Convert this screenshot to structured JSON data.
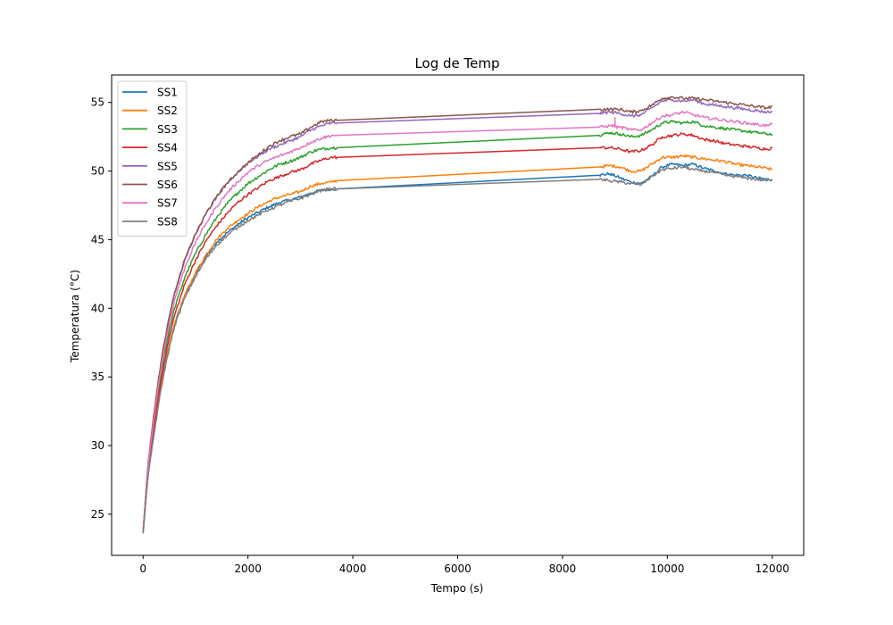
{
  "chart_data": {
    "type": "line",
    "title": "Log de Temp",
    "xlabel": "Tempo (s)",
    "ylabel": "Temperatura (°C)",
    "xlim": [
      -600,
      12600
    ],
    "ylim": [
      22,
      57
    ],
    "xticks": [
      0,
      2000,
      4000,
      6000,
      8000,
      10000,
      12000
    ],
    "yticks": [
      25,
      30,
      35,
      40,
      45,
      50,
      55
    ],
    "grid": false,
    "legend_position": "top-left",
    "series": [
      {
        "name": "SS1",
        "color": "#1f77b4",
        "x": [
          0,
          50,
          100,
          200,
          300,
          400,
          500,
          600,
          800,
          1000,
          1200,
          1400,
          1600,
          1800,
          2000,
          2200,
          2400,
          2600,
          2800,
          3000,
          3200,
          3400,
          3600,
          3700,
          8700,
          8900,
          9100,
          9300,
          9500,
          9700,
          9900,
          10100,
          10300,
          10500,
          10700,
          10900,
          11100,
          11300,
          11500,
          11700,
          11900,
          12000
        ],
        "y": [
          23.7,
          26.0,
          28.0,
          30.8,
          33.3,
          35.5,
          37.3,
          38.9,
          41.0,
          42.5,
          43.8,
          44.8,
          45.5,
          46.1,
          46.6,
          47.0,
          47.4,
          47.7,
          47.9,
          48.1,
          48.4,
          48.6,
          48.7,
          48.7,
          49.7,
          49.8,
          49.5,
          49.2,
          49.1,
          49.6,
          50.3,
          50.5,
          50.4,
          50.5,
          50.2,
          50.0,
          49.8,
          49.7,
          49.7,
          49.5,
          49.4,
          49.4
        ]
      },
      {
        "name": "SS2",
        "color": "#ff7f0e",
        "x": [
          0,
          50,
          100,
          200,
          300,
          400,
          500,
          600,
          800,
          1000,
          1200,
          1400,
          1600,
          1800,
          2000,
          2200,
          2400,
          2600,
          2800,
          3000,
          3200,
          3400,
          3600,
          3700,
          8700,
          8900,
          9100,
          9300,
          9500,
          9700,
          9900,
          10100,
          10300,
          10500,
          10700,
          10900,
          11100,
          11300,
          11500,
          11700,
          11900,
          12000
        ],
        "y": [
          23.7,
          26.0,
          28.0,
          30.8,
          33.3,
          35.5,
          37.3,
          38.9,
          41.0,
          42.6,
          43.9,
          45.0,
          45.8,
          46.4,
          46.9,
          47.4,
          47.8,
          48.1,
          48.3,
          48.5,
          48.9,
          49.1,
          49.2,
          49.3,
          50.3,
          50.4,
          50.3,
          50.0,
          50.0,
          50.5,
          51.0,
          51.0,
          51.1,
          51.0,
          50.9,
          50.8,
          50.7,
          50.5,
          50.4,
          50.3,
          50.2,
          50.1
        ]
      },
      {
        "name": "SS3",
        "color": "#2ca02c",
        "x": [
          0,
          50,
          100,
          200,
          300,
          400,
          500,
          600,
          800,
          1000,
          1200,
          1400,
          1600,
          1800,
          2000,
          2200,
          2400,
          2600,
          2800,
          3000,
          3200,
          3400,
          3600,
          3700,
          8700,
          8900,
          9100,
          9300,
          9500,
          9700,
          9900,
          10100,
          10300,
          10500,
          10700,
          10900,
          11100,
          11300,
          11500,
          11700,
          11900,
          12000
        ],
        "y": [
          23.7,
          26.2,
          28.5,
          31.5,
          34.2,
          36.5,
          38.4,
          40.0,
          42.3,
          44.0,
          45.4,
          46.6,
          47.6,
          48.4,
          49.1,
          49.6,
          50.1,
          50.5,
          50.7,
          51.0,
          51.4,
          51.6,
          51.7,
          51.7,
          52.6,
          52.8,
          52.7,
          52.5,
          52.6,
          53.0,
          53.5,
          53.6,
          53.5,
          53.6,
          53.3,
          53.2,
          53.1,
          53.0,
          52.9,
          52.8,
          52.7,
          52.7
        ]
      },
      {
        "name": "SS4",
        "color": "#d62728",
        "x": [
          0,
          50,
          100,
          200,
          300,
          400,
          500,
          600,
          800,
          1000,
          1200,
          1400,
          1600,
          1800,
          2000,
          2200,
          2400,
          2600,
          2800,
          3000,
          3200,
          3400,
          3600,
          3700,
          8700,
          8900,
          9100,
          9300,
          9500,
          9700,
          9900,
          10100,
          10300,
          10500,
          10700,
          10900,
          11100,
          11300,
          11500,
          11700,
          11900,
          12000
        ],
        "y": [
          23.7,
          26.1,
          28.3,
          31.2,
          33.8,
          36.0,
          37.9,
          39.5,
          41.8,
          43.5,
          44.9,
          46.0,
          46.9,
          47.7,
          48.3,
          48.8,
          49.3,
          49.6,
          49.9,
          50.1,
          50.5,
          50.8,
          51.0,
          51.0,
          51.7,
          51.7,
          51.6,
          51.4,
          51.5,
          51.9,
          52.5,
          52.6,
          52.7,
          52.6,
          52.3,
          52.2,
          52.0,
          51.9,
          51.8,
          51.7,
          51.6,
          51.7
        ]
      },
      {
        "name": "SS5",
        "color": "#9467bd",
        "x": [
          0,
          50,
          100,
          200,
          300,
          400,
          500,
          600,
          800,
          1000,
          1200,
          1400,
          1600,
          1800,
          2000,
          2200,
          2400,
          2600,
          2800,
          3000,
          3200,
          3400,
          3600,
          3700,
          8700,
          8900,
          9100,
          9300,
          9500,
          9700,
          9900,
          10100,
          10300,
          10500,
          10700,
          10900,
          11100,
          11300,
          11500,
          11700,
          11900,
          12000
        ],
        "y": [
          23.7,
          26.4,
          28.9,
          32.1,
          35.0,
          37.4,
          39.4,
          41.1,
          43.6,
          45.4,
          46.9,
          48.1,
          49.1,
          49.9,
          50.6,
          51.1,
          51.6,
          51.9,
          52.2,
          52.5,
          53.0,
          53.3,
          53.5,
          53.5,
          54.2,
          54.3,
          54.2,
          54.0,
          54.1,
          54.6,
          55.1,
          55.2,
          55.1,
          55.2,
          54.9,
          54.8,
          54.7,
          54.6,
          54.5,
          54.4,
          54.3,
          54.3
        ]
      },
      {
        "name": "SS6",
        "color": "#8c564b",
        "x": [
          0,
          50,
          100,
          200,
          300,
          400,
          500,
          600,
          800,
          1000,
          1200,
          1400,
          1600,
          1800,
          2000,
          2200,
          2400,
          2600,
          2800,
          3000,
          3200,
          3400,
          3600,
          3700,
          8700,
          8900,
          9100,
          9300,
          9500,
          9700,
          9900,
          10100,
          10300,
          10500,
          10700,
          10900,
          11100,
          11300,
          11500,
          11700,
          11900,
          12000
        ],
        "y": [
          23.7,
          26.4,
          28.9,
          32.1,
          35.0,
          37.4,
          39.4,
          41.1,
          43.6,
          45.4,
          46.9,
          48.1,
          49.1,
          49.9,
          50.6,
          51.2,
          51.8,
          52.2,
          52.5,
          52.7,
          53.2,
          53.6,
          53.7,
          53.7,
          54.5,
          54.5,
          54.5,
          54.3,
          54.4,
          54.8,
          55.3,
          55.4,
          55.3,
          55.3,
          55.2,
          55.1,
          55.0,
          54.9,
          54.8,
          54.7,
          54.6,
          54.7
        ]
      },
      {
        "name": "SS7",
        "color": "#e377c2",
        "x": [
          0,
          50,
          100,
          200,
          300,
          400,
          500,
          600,
          800,
          1000,
          1200,
          1400,
          1600,
          1800,
          2000,
          2200,
          2400,
          2600,
          2800,
          3000,
          3200,
          3400,
          3600,
          3700,
          8700,
          8900,
          9000,
          9001,
          9002,
          9100,
          9300,
          9500,
          9700,
          9900,
          10100,
          10300,
          10500,
          10700,
          10900,
          11100,
          11300,
          11500,
          11700,
          11900,
          12000
        ],
        "y": [
          23.7,
          26.3,
          28.7,
          31.8,
          34.6,
          36.9,
          38.9,
          40.6,
          43.0,
          44.8,
          46.2,
          47.4,
          48.4,
          49.2,
          49.9,
          50.4,
          50.8,
          51.1,
          51.4,
          51.7,
          52.1,
          52.4,
          52.6,
          52.6,
          53.2,
          53.3,
          53.3,
          53.9,
          53.2,
          53.2,
          53.0,
          53.0,
          53.5,
          54.0,
          54.1,
          54.3,
          54.1,
          53.9,
          53.8,
          53.7,
          53.6,
          53.5,
          53.4,
          53.3,
          53.4
        ]
      },
      {
        "name": "SS8",
        "color": "#7f7f7f",
        "x": [
          0,
          50,
          100,
          200,
          300,
          400,
          500,
          600,
          800,
          1000,
          1200,
          1400,
          1600,
          1800,
          2000,
          2200,
          2400,
          2600,
          2800,
          3000,
          3200,
          3400,
          3600,
          3700,
          8700,
          8900,
          9100,
          9300,
          9500,
          9700,
          9900,
          10100,
          10300,
          10500,
          10700,
          10900,
          11100,
          11300,
          11500,
          11700,
          11900,
          12000
        ],
        "y": [
          23.6,
          25.9,
          27.9,
          30.6,
          33.1,
          35.3,
          37.1,
          38.7,
          40.8,
          42.3,
          43.6,
          44.6,
          45.3,
          45.9,
          46.4,
          46.8,
          47.2,
          47.5,
          47.8,
          48.0,
          48.3,
          48.6,
          48.7,
          48.7,
          49.4,
          49.3,
          49.2,
          49.1,
          49.0,
          49.6,
          50.1,
          50.2,
          50.3,
          50.1,
          50.0,
          49.9,
          49.7,
          49.6,
          49.5,
          49.4,
          49.3,
          49.3
        ]
      }
    ]
  }
}
